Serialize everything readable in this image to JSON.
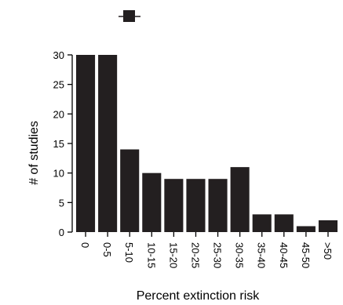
{
  "chart_data": {
    "type": "bar",
    "title": "",
    "xlabel": "Percent extinction risk",
    "ylabel": "# of studies",
    "categories": [
      "0",
      "0-5",
      "5-10",
      "10-15",
      "15-20",
      "20-25",
      "25-30",
      "30-35",
      "35-40",
      "40-45",
      "45-50",
      ">50"
    ],
    "values": [
      30,
      30,
      14,
      10,
      9,
      9,
      9,
      11,
      3,
      3,
      1,
      2
    ],
    "ylim": [
      0,
      30
    ],
    "yticks": [
      0,
      5,
      10,
      15,
      20,
      25,
      30
    ],
    "bar_color": "#231f20",
    "legend": {
      "marker": "square-line",
      "label": "",
      "placement": "top"
    },
    "grid": false
  }
}
